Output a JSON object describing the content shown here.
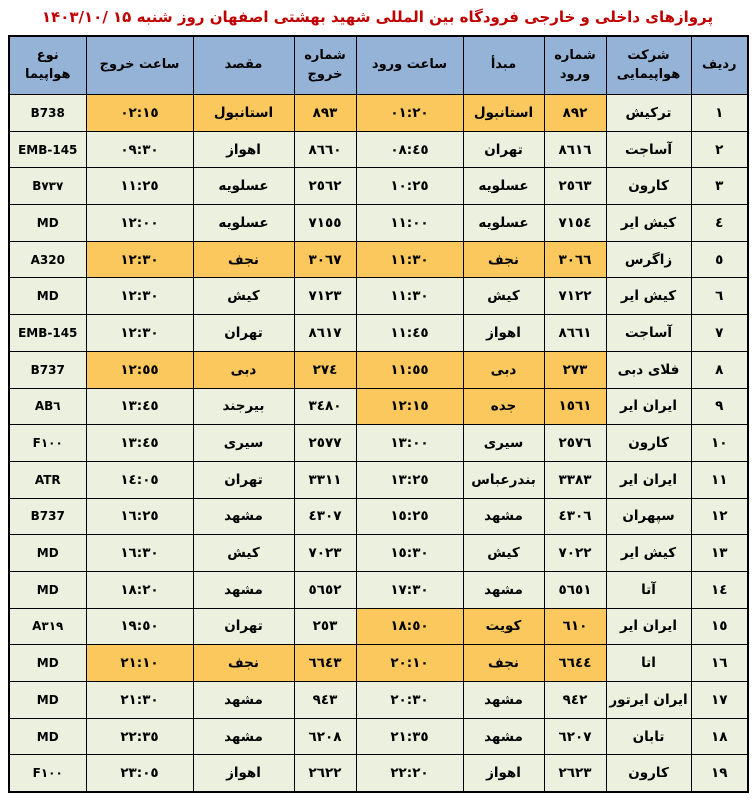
{
  "title": "پروازهای داخلی و خارجی فرودگاه بین المللی شهید بهشتی اصفهان روز شنبه ۱۵ /۱۴۰۳/۱۰",
  "colors": {
    "header_bg": "#95b3d7",
    "row_bg": "#ebf1de",
    "highlight_bg": "#fbc85e",
    "title_color": "#c00000",
    "border": "#000000"
  },
  "columns": [
    "ردیف",
    "شرکت هواپیمایی",
    "شماره ورود",
    "مبدأ",
    "ساعت ورود",
    "شماره خروج",
    "مقصد",
    "ساعت خروج",
    "نوع هواپیما"
  ],
  "rows": [
    {
      "num": "١",
      "airline": "ترکیش",
      "arrival_no": "٨٩٢",
      "origin": "استانبول",
      "arrival_time": "٠١:٢٠",
      "departure_no": "٨٩٣",
      "destination": "استانبول",
      "departure_time": "٠٢:١٥",
      "aircraft": "B738",
      "highlight": "full"
    },
    {
      "num": "٢",
      "airline": "آساجت",
      "arrival_no": "٨٦١٦",
      "origin": "تهران",
      "arrival_time": "٠٨:٤٥",
      "departure_no": "٨٦٦٠",
      "destination": "اهواز",
      "departure_time": "٠٩:٣٠",
      "aircraft": "EMB-145",
      "highlight": "none"
    },
    {
      "num": "٣",
      "airline": "کارون",
      "arrival_no": "٢٥٦٣",
      "origin": "عسلویه",
      "arrival_time": "١٠:٢٥",
      "departure_no": "٢٥٦٢",
      "destination": "عسلویه",
      "departure_time": "١١:٢٥",
      "aircraft": "B٧٣٧",
      "highlight": "none"
    },
    {
      "num": "٤",
      "airline": "کیش ایر",
      "arrival_no": "٧١٥٤",
      "origin": "عسلویه",
      "arrival_time": "١١:٠٠",
      "departure_no": "٧١٥٥",
      "destination": "عسلویه",
      "departure_time": "١٢:٠٠",
      "aircraft": "MD",
      "highlight": "none"
    },
    {
      "num": "٥",
      "airline": "زاگرس",
      "arrival_no": "٣٠٦٦",
      "origin": "نجف",
      "arrival_time": "١١:٣٠",
      "departure_no": "٣٠٦٧",
      "destination": "نجف",
      "departure_time": "١٢:٣٠",
      "aircraft": "A320",
      "highlight": "full"
    },
    {
      "num": "٦",
      "airline": "کیش ایر",
      "arrival_no": "٧١٢٢",
      "origin": "کیش",
      "arrival_time": "١١:٣٠",
      "departure_no": "٧١٢٣",
      "destination": "کیش",
      "departure_time": "١٢:٣٠",
      "aircraft": "MD",
      "highlight": "none"
    },
    {
      "num": "٧",
      "airline": "آساجت",
      "arrival_no": "٨٦٦١",
      "origin": "اهواز",
      "arrival_time": "١١:٤٥",
      "departure_no": "٨٦١٧",
      "destination": "تهران",
      "departure_time": "١٢:٣٠",
      "aircraft": "EMB-145",
      "highlight": "none"
    },
    {
      "num": "٨",
      "airline": "فلای دبی",
      "arrival_no": "٢٧٣",
      "origin": "دبی",
      "arrival_time": "١١:٥٥",
      "departure_no": "٢٧٤",
      "destination": "دبی",
      "departure_time": "١٢:٥٥",
      "aircraft": "B737",
      "highlight": "full"
    },
    {
      "num": "٩",
      "airline": "ایران ایر",
      "arrival_no": "١٥٦١",
      "origin": "جده",
      "arrival_time": "١٢:١٥",
      "departure_no": "٣٤٨٠",
      "destination": "بیرجند",
      "departure_time": "١٣:٤٥",
      "aircraft": "AB٦",
      "highlight": "arrival"
    },
    {
      "num": "١٠",
      "airline": "کارون",
      "arrival_no": "٢٥٧٦",
      "origin": "سیری",
      "arrival_time": "١٣:٠٠",
      "departure_no": "٢٥٧٧",
      "destination": "سیری",
      "departure_time": "١٣:٤٥",
      "aircraft": "F١٠٠",
      "highlight": "none"
    },
    {
      "num": "١١",
      "airline": "ایران ایر",
      "arrival_no": "٣٣٨٣",
      "origin": "بندرعباس",
      "arrival_time": "١٣:٢٥",
      "departure_no": "٣٣١١",
      "destination": "تهران",
      "departure_time": "١٤:٠٥",
      "aircraft": "ATR",
      "highlight": "none"
    },
    {
      "num": "١٢",
      "airline": "سپهران",
      "arrival_no": "٤٣٠٦",
      "origin": "مشهد",
      "arrival_time": "١٥:٢٥",
      "departure_no": "٤٣٠٧",
      "destination": "مشهد",
      "departure_time": "١٦:٢٥",
      "aircraft": "B737",
      "highlight": "none"
    },
    {
      "num": "١٣",
      "airline": "کیش ایر",
      "arrival_no": "٧٠٢٢",
      "origin": "کیش",
      "arrival_time": "١٥:٣٠",
      "departure_no": "٧٠٢٣",
      "destination": "کیش",
      "departure_time": "١٦:٣٠",
      "aircraft": "MD",
      "highlight": "none"
    },
    {
      "num": "١٤",
      "airline": "آتا",
      "arrival_no": "٥٦٥١",
      "origin": "مشهد",
      "arrival_time": "١٧:٣٠",
      "departure_no": "٥٦٥٢",
      "destination": "مشهد",
      "departure_time": "١٨:٢٠",
      "aircraft": "MD",
      "highlight": "none"
    },
    {
      "num": "١٥",
      "airline": "ایران ایر",
      "arrival_no": "٦١٠",
      "origin": "کویت",
      "arrival_time": "١٨:٥٠",
      "departure_no": "٢٥٣",
      "destination": "تهران",
      "departure_time": "١٩:٥٠",
      "aircraft": "A٣١٩",
      "highlight": "arrival"
    },
    {
      "num": "١٦",
      "airline": "اتا",
      "arrival_no": "٦٦٤٤",
      "origin": "نجف",
      "arrival_time": "٢٠:١٠",
      "departure_no": "٦٦٤٣",
      "destination": "نجف",
      "departure_time": "٢١:١٠",
      "aircraft": "MD",
      "highlight": "full"
    },
    {
      "num": "١٧",
      "airline": "ایران ایرتور",
      "arrival_no": "٩٤٢",
      "origin": "مشهد",
      "arrival_time": "٢٠:٣٠",
      "departure_no": "٩٤٣",
      "destination": "مشهد",
      "departure_time": "٢١:٣٠",
      "aircraft": "MD",
      "highlight": "none"
    },
    {
      "num": "١٨",
      "airline": "تابان",
      "arrival_no": "٦٢٠٧",
      "origin": "مشهد",
      "arrival_time": "٢١:٣٥",
      "departure_no": "٦٢٠٨",
      "destination": "مشهد",
      "departure_time": "٢٢:٣٥",
      "aircraft": "MD",
      "highlight": "none"
    },
    {
      "num": "١٩",
      "airline": "کارون",
      "arrival_no": "٢٦٢٣",
      "origin": "اهواز",
      "arrival_time": "٢٢:٢٠",
      "departure_no": "٢٦٢٢",
      "destination": "اهواز",
      "departure_time": "٢٣:٠٥",
      "aircraft": "F١٠٠",
      "highlight": "none"
    }
  ]
}
